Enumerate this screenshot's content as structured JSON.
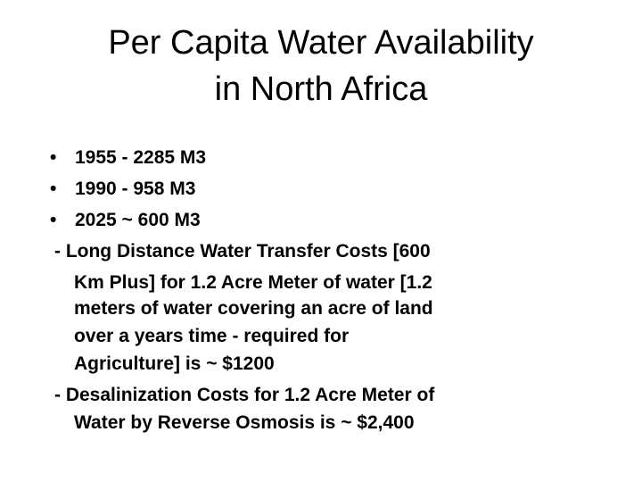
{
  "slide": {
    "title_lines": [
      "Per Capita Water Availability",
      "in North Africa"
    ],
    "bullets": [
      "1955 - 2285 M3",
      "1990 - 958 M3",
      "2025 ~ 600 M3"
    ],
    "bullet_symbol": "•",
    "sub_items": [
      {
        "lines": [
          "- Long Distance Water Transfer Costs [600",
          "Km Plus] for 1.2 Acre Meter of water [1.2",
          "meters of water covering an acre of land",
          "over a years time - required for",
          "Agriculture] is ~ $1200"
        ]
      },
      {
        "lines": [
          "- Desalinization Costs for 1.2 Acre Meter of",
          "Water by Reverse Osmosis is ~ $2,400"
        ]
      }
    ]
  }
}
